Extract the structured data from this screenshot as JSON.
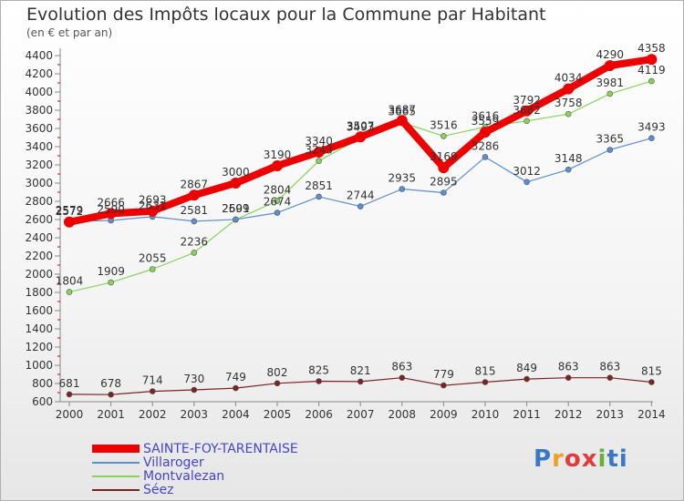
{
  "header": {
    "title": "Evolution des Impôts locaux pour la Commune par Habitant",
    "subtitle": "(en € et par an)"
  },
  "logo": {
    "text": "Proxiti",
    "letters": [
      "P",
      "r",
      "o",
      "x",
      "i",
      "ti"
    ]
  },
  "chart_data": {
    "type": "line",
    "title": "Evolution des Impôts locaux pour la Commune par Habitant",
    "subtitle": "(en € et par an)",
    "xlabel": "",
    "ylabel": "",
    "x": [
      "2000",
      "2001",
      "2002",
      "2003",
      "2004",
      "2005",
      "2006",
      "2007",
      "2008",
      "2009",
      "2010",
      "2011",
      "2012",
      "2013",
      "2014"
    ],
    "yticks": [
      600,
      800,
      1000,
      1200,
      1400,
      1600,
      1800,
      2000,
      2200,
      2400,
      2600,
      2800,
      3000,
      3200,
      3400,
      3600,
      3800,
      4000,
      4200,
      4400
    ],
    "ylim": [
      600,
      4400
    ],
    "grid": false,
    "legend_position": "bottom-left",
    "series": [
      {
        "name": "SAINTE-FOY-TARENTAISE",
        "color": "#ee0000",
        "values": [
          2572,
          2666,
          2693,
          2867,
          3000,
          3190,
          3340,
          3507,
          3687,
          3169,
          3559,
          3792,
          4034,
          4290,
          4358
        ],
        "labels": [
          "2572",
          "2666",
          "2693",
          "2867",
          "3000",
          "3190",
          "3340",
          "3507",
          "3687",
          "3169",
          "3559",
          "3792",
          "4034",
          "4290",
          "4358"
        ]
      },
      {
        "name": "Villaroger",
        "color": "#5b8fd0",
        "values": [
          2579,
          2590,
          2631,
          2581,
          2601,
          2674,
          2851,
          2744,
          2935,
          2895,
          3286,
          3012,
          3148,
          3365,
          3493
        ],
        "labels": [
          "2579",
          "2590",
          "2631",
          "2581",
          "2601",
          "2674",
          "2851",
          "2744",
          "2935",
          "2895",
          "3286",
          "3012",
          "3148",
          "3365",
          "3493"
        ]
      },
      {
        "name": "Montvalezan",
        "color": "#86d45a",
        "values": [
          1804,
          1909,
          2055,
          2236,
          2599,
          2804,
          3243,
          3493,
          3665,
          3516,
          3616,
          3682,
          3758,
          3981,
          4119
        ],
        "labels": [
          "1804",
          "1909",
          "2055",
          "2236",
          "2599",
          "2804",
          "3243",
          "3493",
          "3665",
          "3516",
          "3616",
          "3682",
          "3758",
          "3981",
          "4119"
        ]
      },
      {
        "name": "Séez",
        "color": "#7a2424",
        "values": [
          681,
          678,
          714,
          730,
          749,
          802,
          825,
          821,
          863,
          779,
          815,
          849,
          863,
          863,
          815
        ],
        "labels": [
          "681",
          "678",
          "714",
          "730",
          "749",
          "802",
          "825",
          "821",
          "863",
          "779",
          "815",
          "849",
          "863",
          "863",
          "815"
        ]
      }
    ]
  }
}
